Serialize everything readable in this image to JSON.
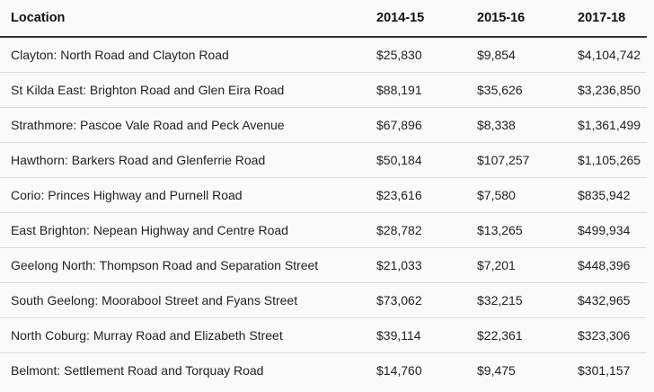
{
  "table": {
    "headers": [
      "Location",
      "2014-15",
      "2015-16",
      "2017-18"
    ],
    "rows": [
      [
        "Clayton: North Road and Clayton Road",
        "$25,830",
        "$9,854",
        "$4,104,742"
      ],
      [
        "St Kilda East: Brighton Road and Glen Eira Road",
        "$88,191",
        "$35,626",
        "$3,236,850"
      ],
      [
        "Strathmore: Pascoe Vale Road and Peck Avenue",
        "$67,896",
        "$8,338",
        "$1,361,499"
      ],
      [
        "Hawthorn: Barkers Road and Glenferrie Road",
        "$50,184",
        "$107,257",
        "$1,105,265"
      ],
      [
        "Corio: Princes Highway and Purnell Road",
        "$23,616",
        "$7,580",
        "$835,942"
      ],
      [
        "East Brighton: Nepean Highway and Centre Road",
        "$28,782",
        "$13,265",
        "$499,934"
      ],
      [
        "Geelong North: Thompson Road and Separation Street",
        "$21,033",
        "$7,201",
        "$448,396"
      ],
      [
        "South Geelong: Moorabool Street and Fyans Street",
        "$73,062",
        "$32,215",
        "$432,965"
      ],
      [
        "North Coburg: Murray Road and Elizabeth Street",
        "$39,114",
        "$22,361",
        "$323,306"
      ],
      [
        "Belmont: Settlement Road and Torquay Road",
        "$14,760",
        "$9,475",
        "$301,157"
      ]
    ]
  }
}
